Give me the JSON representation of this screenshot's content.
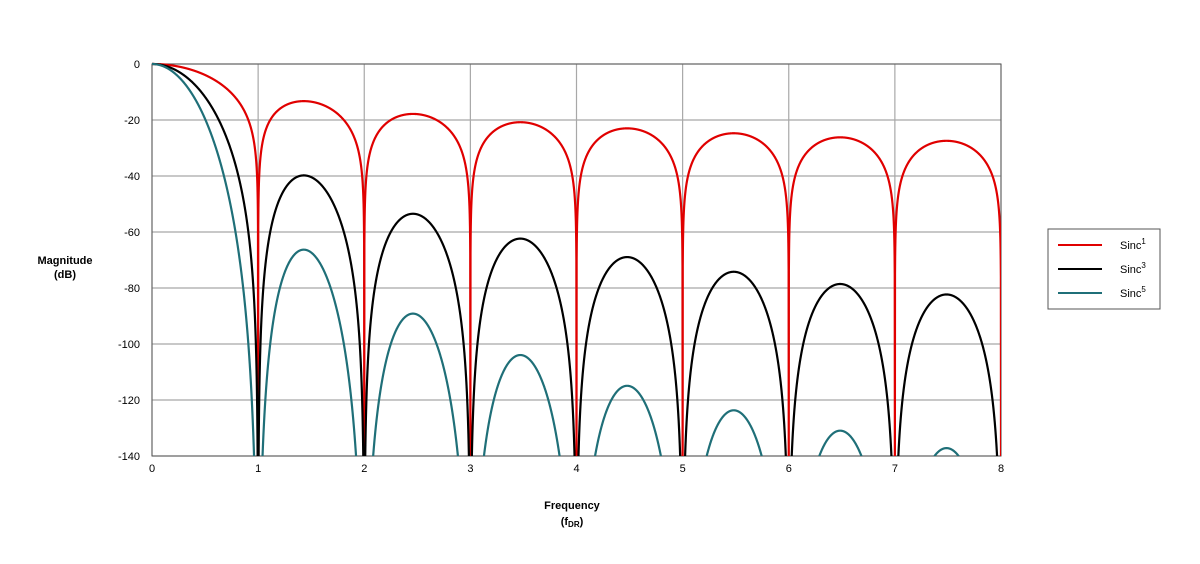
{
  "chart_data": {
    "type": "line",
    "xlabel": {
      "main": "Frequency",
      "unit_base": "f",
      "unit_sub": "DR"
    },
    "ylabel": {
      "line1": "Magnitude",
      "line2": "(dB)"
    },
    "xlim": [
      0,
      8
    ],
    "ylim": [
      -140,
      0
    ],
    "x_ticks": [
      "0",
      "1",
      "2",
      "3",
      "4",
      "5",
      "6",
      "7",
      "8"
    ],
    "y_ticks": [
      "0",
      "-20",
      "-40",
      "-60",
      "-80",
      "-100",
      "-120",
      "-140"
    ],
    "grid": true,
    "legend_position": "right",
    "series": [
      {
        "name": "Sinc",
        "sup": "1",
        "order": 1,
        "color": "#e00000"
      },
      {
        "name": "Sinc",
        "sup": "3",
        "order": 3,
        "color": "#000000"
      },
      {
        "name": "Sinc",
        "sup": "5",
        "order": 5,
        "color": "#1f6f78"
      }
    ],
    "x": [
      0,
      0.5,
      1,
      1.43,
      2,
      2.46,
      3,
      3.47,
      4,
      4.48,
      5,
      5.48,
      6,
      6.48,
      7,
      7.49,
      8
    ],
    "values_note_free": true,
    "series_values": [
      [
        0,
        -3.9,
        -140,
        -13.3,
        -140,
        -17.8,
        -140,
        -20.8,
        -140,
        -22.9,
        -140,
        -24.7,
        -140,
        -26.1,
        -140,
        -27.3,
        -140
      ],
      [
        0,
        -11.8,
        -140,
        -39.9,
        -140,
        -53.5,
        -140,
        -62.4,
        -140,
        -68.8,
        -140,
        -74.0,
        -140,
        -78.2,
        -140,
        -81.9,
        -140
      ],
      [
        0,
        -19.6,
        -140,
        -66.5,
        -140,
        -89.1,
        -140,
        -104.0,
        -140,
        -114.7,
        -140,
        -123.4,
        -140,
        -130.3,
        -140,
        -136.5,
        -140
      ]
    ]
  }
}
